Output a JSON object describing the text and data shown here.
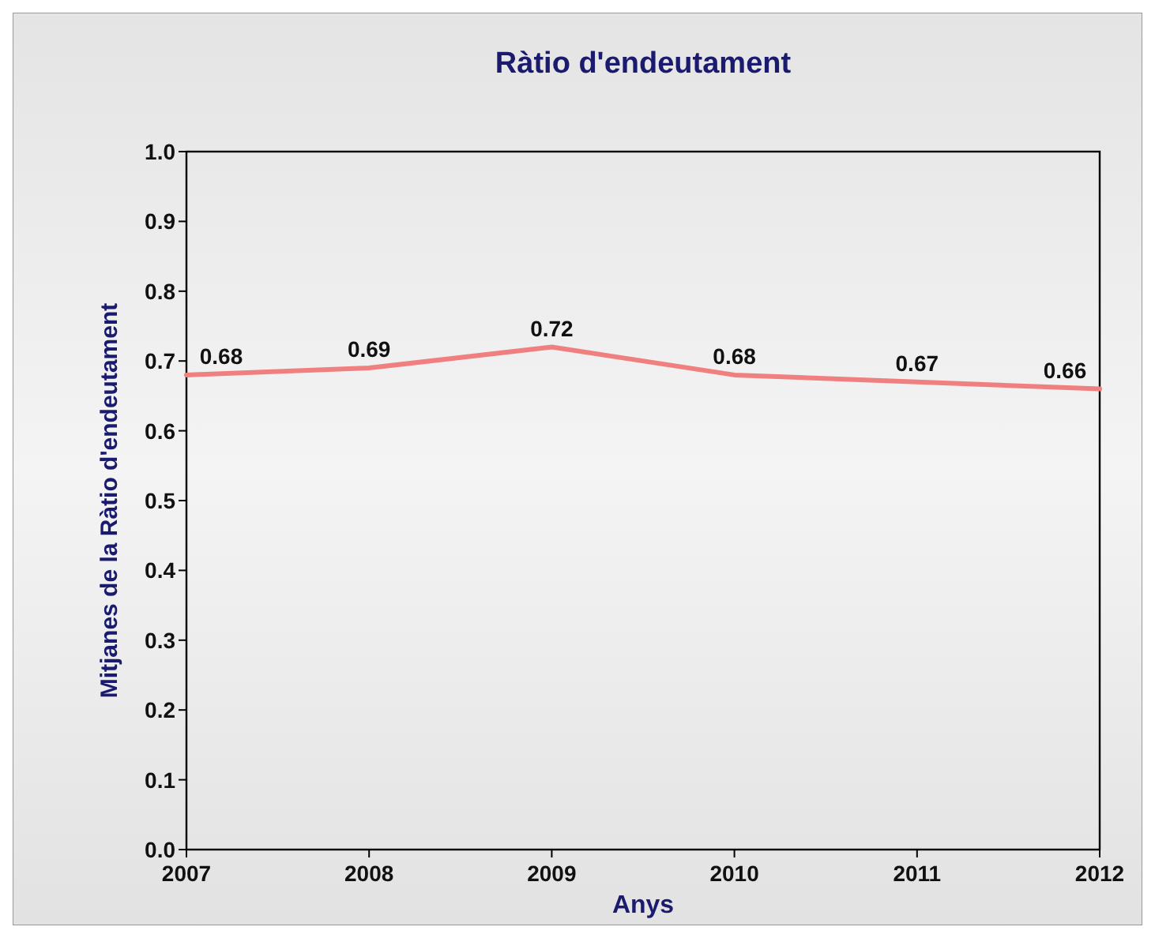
{
  "chart_data": {
    "type": "line",
    "title": "Ràtio d'endeutament",
    "xlabel": "Anys",
    "ylabel": "Mitjanes de la Ràtio d'endeutament",
    "x": [
      2007,
      2008,
      2009,
      2010,
      2011,
      2012
    ],
    "series": [
      {
        "color": "#f08080",
        "values": [
          0.68,
          0.69,
          0.72,
          0.68,
          0.67,
          0.66
        ]
      }
    ],
    "xlim": [
      2007,
      2012
    ],
    "xticks": [
      2007,
      2008,
      2009,
      2010,
      2011,
      2012
    ],
    "ylim": [
      0,
      1
    ],
    "yticks": [
      {
        "value": 0,
        "label": "0.0"
      },
      {
        "value": 0.1,
        "label": "0.1"
      },
      {
        "value": 0.2,
        "label": "0.2"
      },
      {
        "value": 0.3,
        "label": "0.3"
      },
      {
        "value": 0.4,
        "label": "0.4"
      },
      {
        "value": 0.5,
        "label": "0.5"
      },
      {
        "value": 0.6,
        "label": "0.6"
      },
      {
        "value": 0.7,
        "label": "0.7"
      },
      {
        "value": 0.8,
        "label": "0.8"
      },
      {
        "value": 0.9,
        "label": "0.9"
      },
      {
        "value": 1,
        "label": "1.0"
      }
    ],
    "data_labels": true,
    "grid": false,
    "marker": "none",
    "line_style": "solid"
  }
}
